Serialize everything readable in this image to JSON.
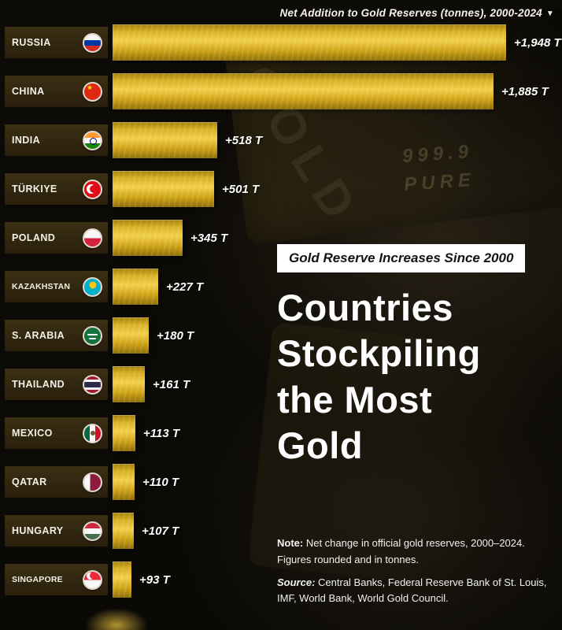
{
  "header": {
    "title": "Net Addition to Gold Reserves (tonnes), 2000-2024",
    "dropdown": "▼"
  },
  "chart_data": {
    "type": "bar",
    "orientation": "horizontal",
    "title": "Net Addition to Gold Reserves (tonnes), 2000-2024",
    "unit": "tonnes",
    "xlim": [
      0,
      1948
    ],
    "grid": false,
    "categories": [
      "RUSSIA",
      "CHINA",
      "INDIA",
      "TÜRKIYE",
      "POLAND",
      "KAZAKHSTAN",
      "S. ARABIA",
      "THAILAND",
      "MEXICO",
      "QATAR",
      "HUNGARY",
      "SINGAPORE"
    ],
    "values": [
      1948,
      1885,
      518,
      501,
      345,
      227,
      180,
      161,
      113,
      110,
      107,
      93
    ],
    "value_labels": [
      "+1,948 T",
      "+1,885 T",
      "+518 T",
      "+501 T",
      "+345 T",
      "+227 T",
      "+180 T",
      "+161 T",
      "+113 T",
      "+110 T",
      "+107 T",
      "+93 T"
    ],
    "flag_icons": [
      "russia-flag-icon",
      "china-flag-icon",
      "india-flag-icon",
      "turkiye-flag-icon",
      "poland-flag-icon",
      "kazakhstan-flag-icon",
      "saudi-arabia-flag-icon",
      "thailand-flag-icon",
      "mexico-flag-icon",
      "qatar-flag-icon",
      "hungary-flag-icon",
      "singapore-flag-icon"
    ]
  },
  "overlay": {
    "badge": "Gold Reserve Increases Since 2000",
    "heading_lines": [
      "Countries",
      "Stockpiling",
      "the Most",
      "Gold"
    ]
  },
  "background_text": {
    "purity": "999.9",
    "pure": "PURE",
    "gold": "GOLD"
  },
  "footer": {
    "note_label": "Note:",
    "note_text": "Net change in official gold reserves, 2000–2024. Figures rounded and in tonnes.",
    "source_label": "Source:",
    "source_text": "Central Banks, Federal Reserve Bank of St. Louis, IMF, World Bank, World Gold Council."
  },
  "colors": {
    "gold_bright": "#f0ce4a",
    "gold_mid": "#d9b125",
    "gold_dark": "#8e6f08",
    "label_box": "#352b11",
    "background": "#0b0a07",
    "badge_bg": "#ffffff",
    "badge_text": "#131313",
    "text": "#ffffff"
  }
}
